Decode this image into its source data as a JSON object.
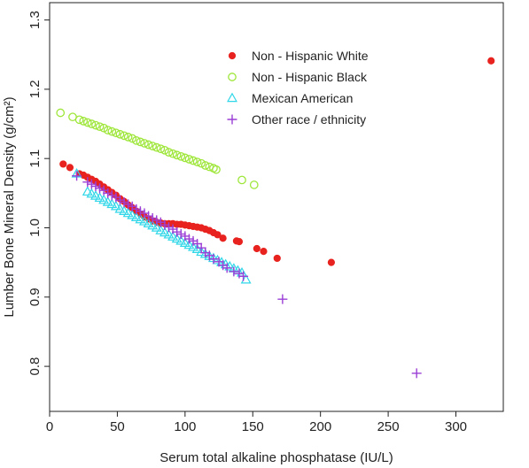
{
  "chart_data": {
    "type": "scatter",
    "title": "",
    "xlabel": "Serum total alkaline phosphatase (IU/L)",
    "ylabel": "Lumber Bone Mineral Density (g/cm²)",
    "xlim": [
      0,
      335
    ],
    "ylim": [
      0.735,
      1.325
    ],
    "xticks": [
      0,
      50,
      100,
      150,
      200,
      250,
      300
    ],
    "yticks": [
      0.8,
      0.9,
      1.0,
      1.1,
      1.2,
      1.3
    ],
    "ytick_labels": [
      "0.8",
      "0.9",
      "1.0",
      "1.1",
      "1.2",
      "1.3"
    ],
    "grid": false,
    "legend_position": "top-right",
    "series": [
      {
        "name": "Non - Hispanic White",
        "marker": "filled-circle",
        "color": "#e8221e",
        "x": [
          10,
          15,
          22,
          25,
          28,
          31,
          34,
          37,
          40,
          43,
          46,
          49,
          52,
          55,
          58,
          61,
          64,
          67,
          70,
          73,
          76,
          79,
          82,
          85,
          88,
          91,
          94,
          97,
          100,
          103,
          106,
          109,
          112,
          115,
          118,
          121,
          124,
          128,
          138,
          140,
          153,
          158,
          168,
          208,
          326
        ],
        "y": [
          1.092,
          1.087,
          1.078,
          1.076,
          1.073,
          1.07,
          1.067,
          1.063,
          1.059,
          1.055,
          1.051,
          1.047,
          1.042,
          1.038,
          1.033,
          1.029,
          1.024,
          1.02,
          1.016,
          1.013,
          1.01,
          1.008,
          1.007,
          1.006,
          1.006,
          1.006,
          1.005,
          1.005,
          1.004,
          1.003,
          1.002,
          1.001,
          1.0,
          0.998,
          0.996,
          0.993,
          0.99,
          0.985,
          0.981,
          0.98,
          0.97,
          0.966,
          0.956,
          0.95,
          1.241
        ]
      },
      {
        "name": "Non - Hispanic Black",
        "marker": "open-circle",
        "color": "#9ee63a",
        "x": [
          8,
          17,
          22,
          25,
          28,
          31,
          34,
          37,
          40,
          43,
          46,
          49,
          52,
          55,
          58,
          61,
          64,
          67,
          70,
          73,
          76,
          79,
          82,
          85,
          88,
          91,
          94,
          97,
          100,
          103,
          106,
          109,
          112,
          115,
          118,
          121,
          123,
          142,
          151
        ],
        "y": [
          1.166,
          1.16,
          1.156,
          1.154,
          1.152,
          1.15,
          1.148,
          1.146,
          1.144,
          1.141,
          1.139,
          1.137,
          1.135,
          1.133,
          1.131,
          1.129,
          1.126,
          1.124,
          1.122,
          1.12,
          1.118,
          1.116,
          1.114,
          1.112,
          1.109,
          1.107,
          1.105,
          1.103,
          1.101,
          1.099,
          1.097,
          1.095,
          1.093,
          1.09,
          1.088,
          1.086,
          1.084,
          1.069,
          1.062
        ]
      },
      {
        "name": "Mexican American",
        "marker": "open-triangle",
        "color": "#31d7e8",
        "x": [
          20,
          28,
          31,
          34,
          37,
          40,
          43,
          46,
          49,
          52,
          55,
          58,
          61,
          64,
          67,
          70,
          73,
          76,
          79,
          82,
          85,
          88,
          91,
          94,
          97,
          100,
          103,
          106,
          109,
          112,
          115,
          118,
          121,
          124,
          127,
          130,
          133,
          136,
          139,
          142,
          145
        ],
        "y": [
          1.078,
          1.052,
          1.049,
          1.046,
          1.043,
          1.04,
          1.037,
          1.034,
          1.031,
          1.027,
          1.024,
          1.021,
          1.018,
          1.015,
          1.012,
          1.009,
          1.006,
          1.003,
          1.0,
          0.996,
          0.993,
          0.99,
          0.987,
          0.984,
          0.981,
          0.978,
          0.975,
          0.972,
          0.969,
          0.965,
          0.962,
          0.959,
          0.956,
          0.953,
          0.95,
          0.947,
          0.944,
          0.941,
          0.938,
          0.935,
          0.925
        ]
      },
      {
        "name": "Other race / ethnicity",
        "marker": "plus",
        "color": "#9b3fd6",
        "x": [
          20,
          28,
          31,
          34,
          37,
          40,
          43,
          46,
          49,
          52,
          55,
          58,
          61,
          64,
          67,
          70,
          73,
          76,
          79,
          82,
          85,
          88,
          91,
          94,
          97,
          100,
          103,
          106,
          109,
          112,
          115,
          118,
          121,
          125,
          128,
          131,
          136,
          140,
          143,
          172,
          271
        ],
        "y": [
          1.075,
          1.066,
          1.063,
          1.06,
          1.057,
          1.054,
          1.05,
          1.047,
          1.044,
          1.04,
          1.037,
          1.034,
          1.031,
          1.027,
          1.024,
          1.021,
          1.017,
          1.014,
          1.011,
          1.008,
          1.004,
          1.001,
          0.998,
          0.994,
          0.991,
          0.988,
          0.984,
          0.981,
          0.977,
          0.971,
          0.964,
          0.96,
          0.955,
          0.951,
          0.946,
          0.942,
          0.937,
          0.934,
          0.93,
          0.897,
          0.79
        ]
      }
    ]
  }
}
